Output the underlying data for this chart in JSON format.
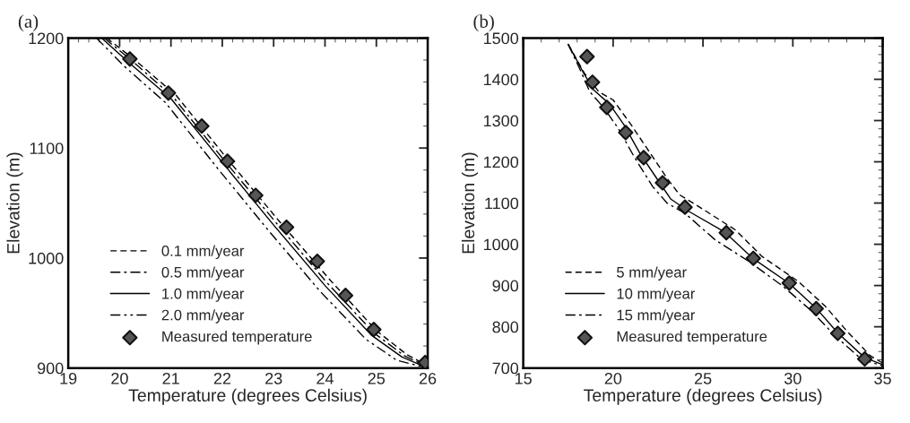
{
  "chart_data": [
    {
      "type": "line",
      "title": "(a)",
      "xlabel": "Temperature (degrees Celsius)",
      "ylabel": "Elevation (m)",
      "xlim": [
        19,
        26
      ],
      "xticks": [
        19,
        20,
        21,
        22,
        23,
        24,
        25,
        26
      ],
      "ylim": [
        900,
        1200
      ],
      "yticks": [
        900,
        1000,
        1100,
        1200
      ],
      "grid": false,
      "legend": "bottom left",
      "series": [
        {
          "name": "0.1 mm/year",
          "line_style": "dashed",
          "color": "#000000",
          "x": [
            19.75,
            20.3,
            21.1,
            22.1,
            23.1,
            24.1,
            25.0,
            25.6,
            26.0
          ],
          "values": [
            1200,
            1180,
            1148,
            1090,
            1034,
            980,
            934,
            912,
            902
          ]
        },
        {
          "name": "0.5 mm/year",
          "line_style": "dashdot",
          "color": "#000000",
          "x": [
            19.7,
            20.25,
            21.05,
            22.05,
            23.05,
            24.05,
            24.95,
            25.55,
            26.0
          ],
          "values": [
            1200,
            1179,
            1146,
            1088,
            1032,
            977,
            932,
            911,
            901
          ]
        },
        {
          "name": "1.0 mm/year",
          "line_style": "solid",
          "color": "#000000",
          "x": [
            19.65,
            20.2,
            21.0,
            22.0,
            23.0,
            24.0,
            24.9,
            25.5,
            26.0
          ],
          "values": [
            1200,
            1177,
            1145,
            1087,
            1030,
            975,
            930,
            910,
            900
          ]
        },
        {
          "name": "2.0 mm/year",
          "line_style": "dashdotdot",
          "color": "#000000",
          "x": [
            19.55,
            20.1,
            20.9,
            21.9,
            22.9,
            23.9,
            24.8,
            25.4,
            26.0
          ],
          "values": [
            1200,
            1174,
            1141,
            1082,
            1025,
            970,
            926,
            907,
            900
          ]
        },
        {
          "name": "Measured temperature",
          "type": "scatter",
          "marker": "diamond",
          "color": "#555555",
          "x": [
            20.2,
            20.95,
            21.6,
            22.1,
            22.65,
            23.25,
            23.85,
            24.4,
            24.95,
            25.95
          ],
          "values": [
            1181,
            1150,
            1120,
            1088,
            1057,
            1028,
            997,
            966,
            935,
            905
          ]
        }
      ]
    },
    {
      "type": "line",
      "title": "(b)",
      "xlabel": "Temperature (degrees Celsius)",
      "ylabel": "Elevation (m)",
      "xlim": [
        15,
        35
      ],
      "xticks": [
        15,
        20,
        25,
        30,
        35
      ],
      "ylim": [
        700,
        1500
      ],
      "yticks": [
        700,
        800,
        900,
        1000,
        1100,
        1200,
        1300,
        1400,
        1500
      ],
      "grid": false,
      "legend": "bottom left",
      "series": [
        {
          "name": "5 mm/year",
          "line_style": "dashed",
          "color": "#000000",
          "x": [
            17.5,
            18.4,
            19.2,
            20.0,
            21.0,
            22.0,
            23.0,
            23.7,
            25.0,
            26.8,
            28.3,
            30.3,
            31.8,
            33.0,
            34.3,
            35.0
          ],
          "values": [
            1485,
            1415,
            1370,
            1350,
            1290,
            1225,
            1160,
            1120,
            1085,
            1035,
            970,
            910,
            850,
            790,
            730,
            712
          ]
        },
        {
          "name": "10 mm/year",
          "line_style": "solid",
          "color": "#000000",
          "x": [
            17.5,
            18.3,
            18.9,
            19.8,
            20.6,
            21.5,
            22.5,
            23.2,
            24.2,
            26.2,
            27.8,
            29.8,
            31.3,
            32.5,
            34.0,
            35.0
          ],
          "values": [
            1485,
            1420,
            1375,
            1340,
            1290,
            1220,
            1155,
            1110,
            1080,
            1030,
            965,
            905,
            845,
            785,
            725,
            708
          ]
        },
        {
          "name": "15 mm/year",
          "line_style": "dashdot",
          "color": "#000000",
          "x": [
            17.5,
            18.2,
            18.7,
            19.5,
            20.3,
            21.2,
            22.2,
            23.0,
            24.0,
            25.7,
            27.5,
            29.4,
            31.0,
            32.3,
            33.8,
            35.0
          ],
          "values": [
            1485,
            1420,
            1370,
            1330,
            1280,
            1210,
            1140,
            1100,
            1075,
            1010,
            960,
            900,
            840,
            780,
            722,
            705
          ]
        },
        {
          "name": "Measured temperature",
          "type": "scatter",
          "marker": "diamond",
          "color": "#555555",
          "x": [
            18.55,
            18.85,
            19.65,
            20.7,
            21.7,
            22.75,
            24.0,
            26.3,
            27.8,
            29.8,
            31.3,
            32.5,
            34.0
          ],
          "values": [
            1455,
            1393,
            1332,
            1271,
            1210,
            1149,
            1090,
            1028,
            966,
            906,
            844,
            784,
            722
          ]
        }
      ]
    }
  ]
}
